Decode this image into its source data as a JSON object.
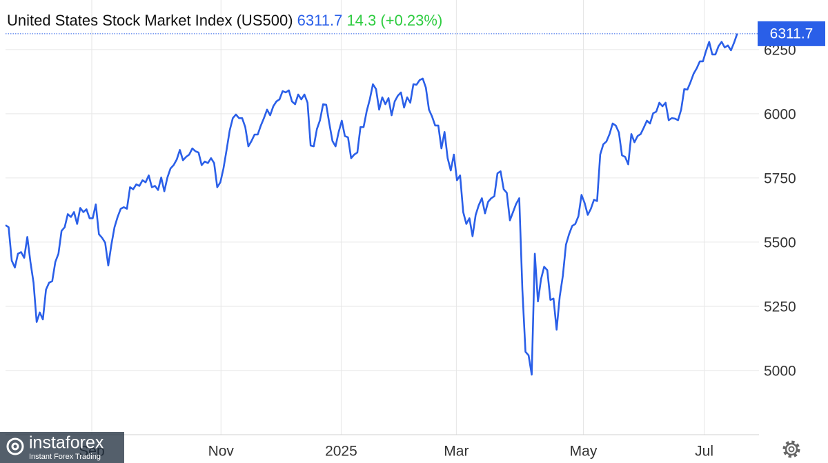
{
  "chart_data": {
    "type": "line",
    "title": "United States Stock Market Index (US500)",
    "last_value": 6311.7,
    "change": 14.3,
    "change_percent_label": "(+0.23%)",
    "color": "#2a5fe8",
    "grid": true,
    "values": [
      5566,
      5558,
      5428,
      5401,
      5455,
      5461,
      5439,
      5520,
      5423,
      5342,
      5189,
      5226,
      5199,
      5315,
      5342,
      5348,
      5423,
      5455,
      5544,
      5558,
      5609,
      5598,
      5617,
      5571,
      5633,
      5617,
      5628,
      5593,
      5593,
      5647,
      5531,
      5517,
      5498,
      5409,
      5490,
      5558,
      5598,
      5630,
      5636,
      5630,
      5714,
      5706,
      5725,
      5719,
      5741,
      5733,
      5760,
      5714,
      5719,
      5703,
      5752,
      5698,
      5752,
      5787,
      5800,
      5822,
      5859,
      5819,
      5832,
      5841,
      5865,
      5854,
      5849,
      5800,
      5814,
      5808,
      5827,
      5808,
      5714,
      5733,
      5787,
      5859,
      5935,
      5983,
      5997,
      5983,
      5983,
      5948,
      5873,
      5894,
      5919,
      5919,
      5954,
      5983,
      6016,
      5994,
      6029,
      6048,
      6056,
      6088,
      6083,
      6091,
      6048,
      6037,
      6075,
      6056,
      6075,
      6043,
      5876,
      5873,
      5940,
      5975,
      6037,
      6035,
      5962,
      5894,
      5873,
      5929,
      5973,
      5913,
      5908,
      5827,
      5841,
      5849,
      5948,
      5948,
      6010,
      6056,
      6115,
      6096,
      6016,
      6064,
      6037,
      6061,
      5994,
      6048,
      6070,
      6083,
      6024,
      6064,
      6043,
      6115,
      6113,
      6131,
      6137,
      6102,
      6016,
      5989,
      5954,
      5954,
      5865,
      5929,
      5827,
      5779,
      5841,
      5741,
      5760,
      5617,
      5571,
      5593,
      5523,
      5606,
      5644,
      5671,
      5612,
      5657,
      5671,
      5679,
      5768,
      5776,
      5706,
      5692,
      5585,
      5617,
      5649,
      5671,
      5315,
      5073,
      5059,
      4984,
      5455,
      5269,
      5356,
      5404,
      5391,
      5275,
      5280,
      5159,
      5288,
      5369,
      5490,
      5531,
      5563,
      5571,
      5601,
      5684,
      5652,
      5606,
      5630,
      5665,
      5660,
      5841,
      5881,
      5892,
      5921,
      5962,
      5954,
      5927,
      5838,
      5832,
      5803,
      5921,
      5889,
      5913,
      5921,
      5946,
      5973,
      5962,
      6002,
      6008,
      6043,
      6029,
      6043,
      5975,
      5983,
      5981,
      5975,
      6016,
      6096,
      6094,
      6123,
      6156,
      6177,
      6204,
      6204,
      6245,
      6280,
      6231,
      6231,
      6263,
      6280,
      6258,
      6266,
      6247,
      6277,
      6311.7
    ],
    "xlim": [
      0,
      242
    ],
    "xticks": [
      {
        "value": 27.7,
        "label": "Sep"
      },
      {
        "value": 69.2,
        "label": "Nov"
      },
      {
        "value": 107.8,
        "label": "2025"
      },
      {
        "value": 144.8,
        "label": "Mar"
      },
      {
        "value": 185.6,
        "label": "May"
      },
      {
        "value": 224.4,
        "label": "Jul"
      }
    ],
    "ylim": [
      4750,
      6443
    ],
    "yticks": [
      5000,
      5250,
      5500,
      5750,
      6000,
      6250
    ]
  },
  "watermark": {
    "brand": "instaforex",
    "tagline": "Instant Forex Trading"
  }
}
